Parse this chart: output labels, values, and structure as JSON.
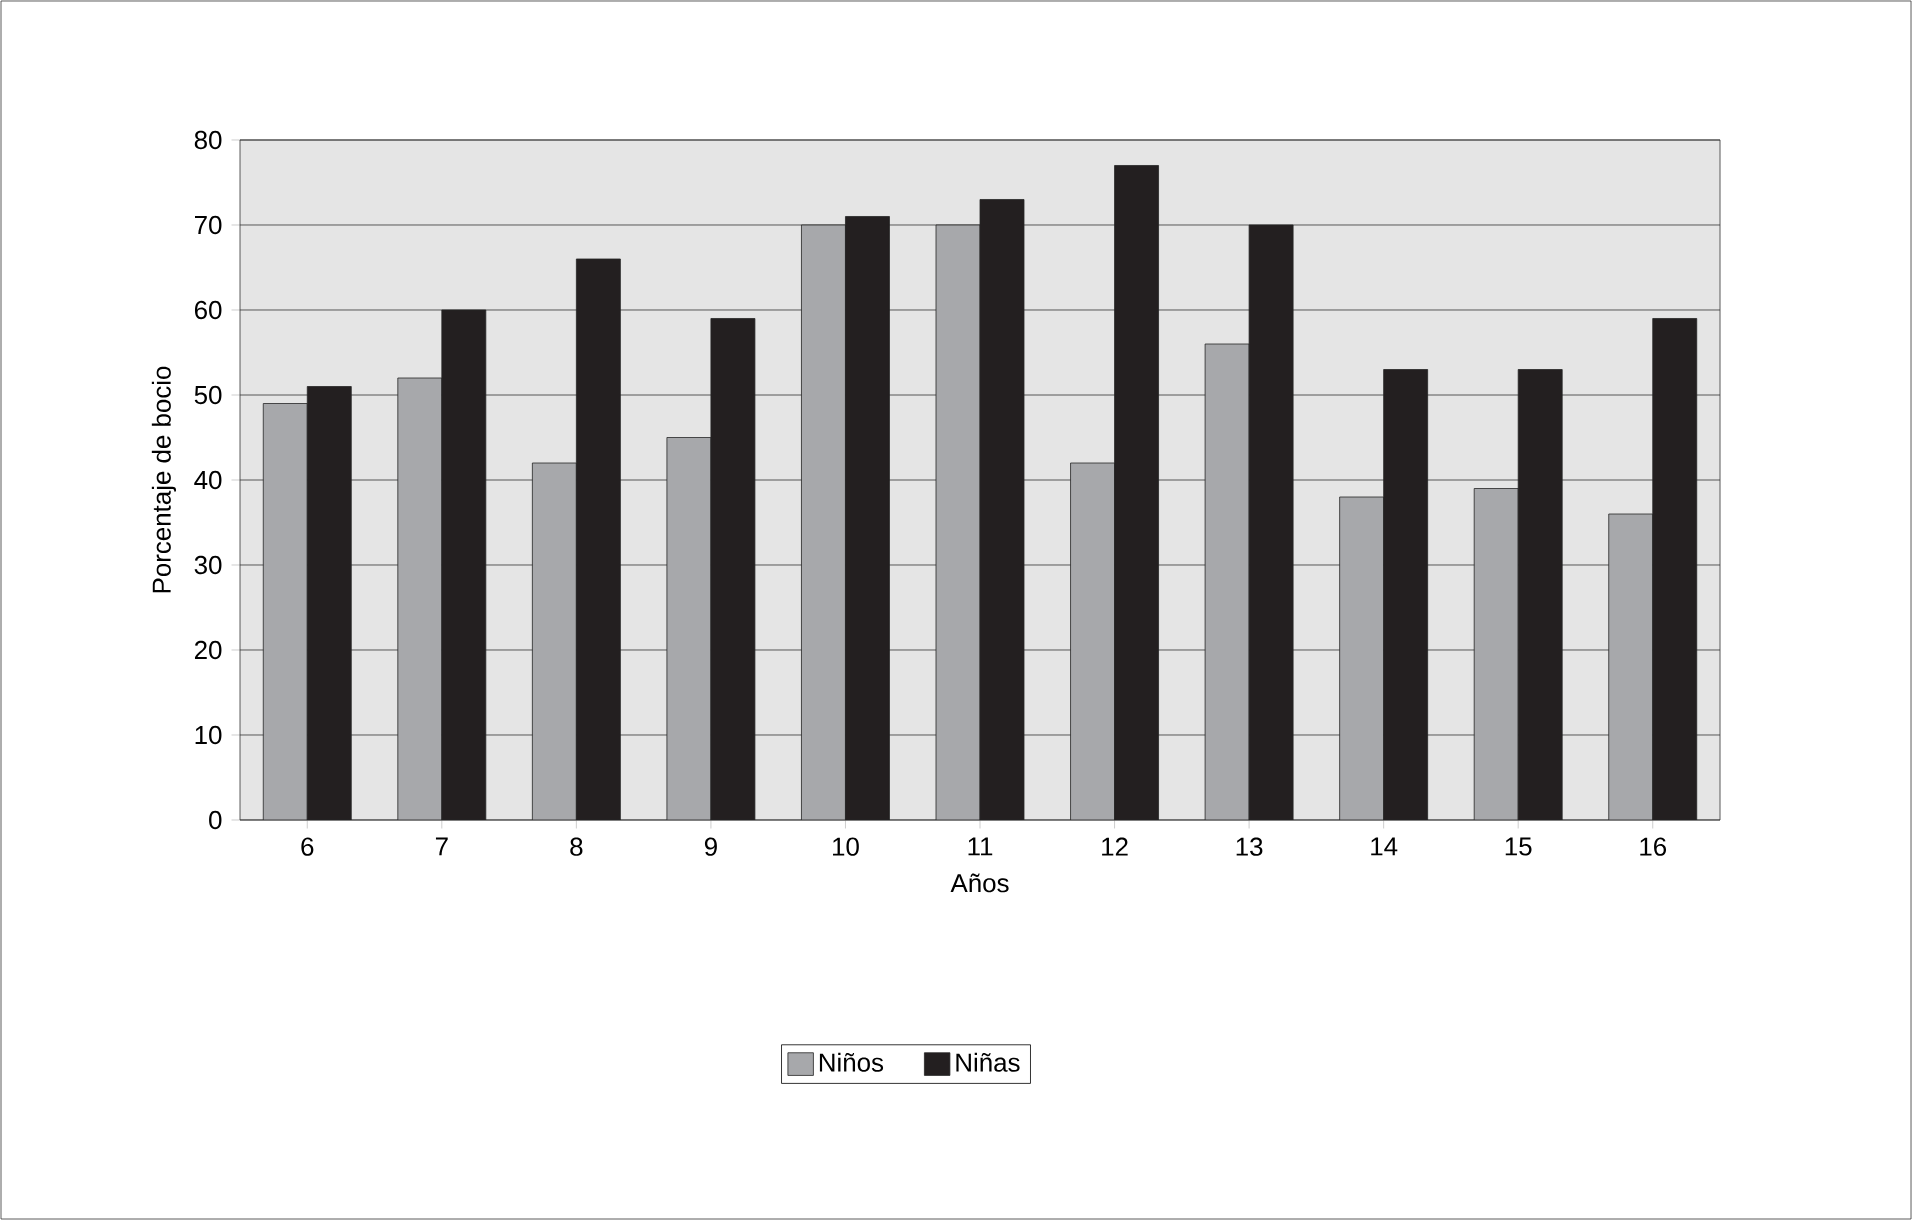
{
  "chart_data": {
    "type": "bar",
    "xlabel": "Años",
    "ylabel": "Porcentaje de bocio",
    "categories": [
      "6",
      "7",
      "8",
      "9",
      "10",
      "11",
      "12",
      "13",
      "14",
      "15",
      "16"
    ],
    "series": [
      {
        "name": "Niños",
        "color": "#a7a8ab",
        "values": [
          49,
          52,
          42,
          45,
          70,
          70,
          42,
          56,
          38,
          39,
          36
        ]
      },
      {
        "name": "Niñas",
        "color": "#231f20",
        "values": [
          51,
          60,
          66,
          59,
          71,
          73,
          77,
          70,
          53,
          53,
          59
        ]
      }
    ],
    "ylim": [
      0,
      80
    ],
    "yticks": [
      0,
      10,
      20,
      30,
      40,
      50,
      60,
      70,
      80
    ],
    "grid": "y",
    "legend": "bottom"
  }
}
